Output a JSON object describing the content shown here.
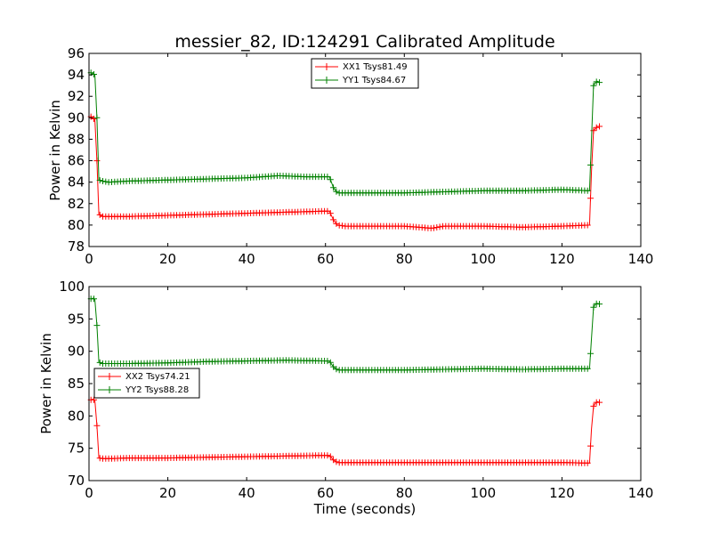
{
  "chart_data": [
    {
      "type": "line",
      "title": "messier_82, ID:124291 Calibrated Amplitude",
      "xlabel": "",
      "ylabel": "Power in Kelvin",
      "xlim": [
        0,
        140
      ],
      "ylim": [
        78,
        96
      ],
      "xticks": [
        "0",
        "20",
        "40",
        "60",
        "80",
        "100",
        "120",
        "140"
      ],
      "yticks": [
        "78",
        "80",
        "82",
        "84",
        "86",
        "88",
        "90",
        "92",
        "94",
        "96"
      ],
      "legend_position": "top-center",
      "grid": false,
      "series": [
        {
          "name": "XX1 Tsys81.49",
          "color": "#ff0000",
          "x": [
            0.5,
            1.0,
            1.5,
            2.0,
            2.5,
            3.5,
            5,
            10,
            20,
            30,
            40,
            50,
            60,
            61,
            62,
            63,
            65,
            70,
            80,
            87,
            90,
            100,
            110,
            120,
            127,
            127.5,
            128,
            128.5,
            129,
            129.5
          ],
          "y": [
            90.1,
            90.0,
            89.8,
            86.0,
            81.0,
            80.8,
            80.8,
            80.8,
            80.9,
            81.0,
            81.1,
            81.2,
            81.3,
            81.3,
            80.5,
            80.0,
            79.9,
            79.9,
            79.9,
            79.7,
            79.9,
            79.9,
            79.8,
            79.9,
            80.0,
            85.0,
            88.8,
            89.0,
            89.2,
            89.2
          ]
        },
        {
          "name": "YY1 Tsys84.67",
          "color": "#008000",
          "x": [
            0.5,
            1.0,
            1.5,
            2.0,
            2.5,
            3.5,
            5,
            10,
            20,
            30,
            40,
            48,
            55,
            60,
            61,
            62,
            63,
            65,
            70,
            80,
            90,
            100,
            110,
            120,
            127,
            127.5,
            128,
            128.5,
            129,
            129.5
          ],
          "y": [
            94.2,
            94.1,
            94.0,
            90.0,
            84.2,
            84.1,
            84.0,
            84.1,
            84.2,
            84.3,
            84.4,
            84.6,
            84.5,
            84.5,
            84.5,
            83.5,
            83.0,
            83.0,
            83.0,
            83.0,
            83.1,
            83.2,
            83.2,
            83.3,
            83.2,
            88.0,
            93.0,
            93.3,
            93.4,
            93.3
          ]
        }
      ]
    },
    {
      "type": "line",
      "title": "",
      "xlabel": "Time (seconds)",
      "ylabel": "Power in Kelvin",
      "xlim": [
        0,
        140
      ],
      "ylim": [
        70,
        100
      ],
      "xticks": [
        "0",
        "20",
        "40",
        "60",
        "80",
        "100",
        "120",
        "140"
      ],
      "yticks": [
        "70",
        "75",
        "80",
        "85",
        "90",
        "95",
        "100"
      ],
      "legend_position": "center-left",
      "grid": false,
      "series": [
        {
          "name": "XX2 Tsys74.21",
          "color": "#ff0000",
          "x": [
            0.5,
            1.0,
            1.5,
            2.0,
            2.5,
            3.5,
            5,
            10,
            20,
            30,
            40,
            50,
            60,
            61,
            62,
            63,
            65,
            70,
            80,
            90,
            100,
            110,
            120,
            127,
            127.5,
            128,
            128.5,
            129,
            129.5
          ],
          "y": [
            82.5,
            82.6,
            82.4,
            78.5,
            73.5,
            73.4,
            73.4,
            73.5,
            73.5,
            73.6,
            73.7,
            73.8,
            73.9,
            73.9,
            73.2,
            72.8,
            72.8,
            72.8,
            72.8,
            72.8,
            72.8,
            72.8,
            72.8,
            72.7,
            78.0,
            81.5,
            82.0,
            82.2,
            82.1
          ]
        },
        {
          "name": "YY2 Tsys88.28",
          "color": "#008000",
          "x": [
            0.5,
            1.0,
            1.5,
            2.0,
            2.5,
            3.5,
            5,
            10,
            20,
            30,
            40,
            50,
            60,
            61,
            62,
            63,
            65,
            70,
            80,
            90,
            100,
            110,
            120,
            127,
            127.5,
            128,
            128.5,
            129,
            129.5
          ],
          "y": [
            98.1,
            98.2,
            98.0,
            94.0,
            88.3,
            88.1,
            88.1,
            88.1,
            88.2,
            88.4,
            88.5,
            88.6,
            88.5,
            88.5,
            87.6,
            87.1,
            87.1,
            87.1,
            87.1,
            87.2,
            87.3,
            87.2,
            87.3,
            87.3,
            92.0,
            96.8,
            97.3,
            97.4,
            97.3
          ]
        }
      ]
    }
  ]
}
